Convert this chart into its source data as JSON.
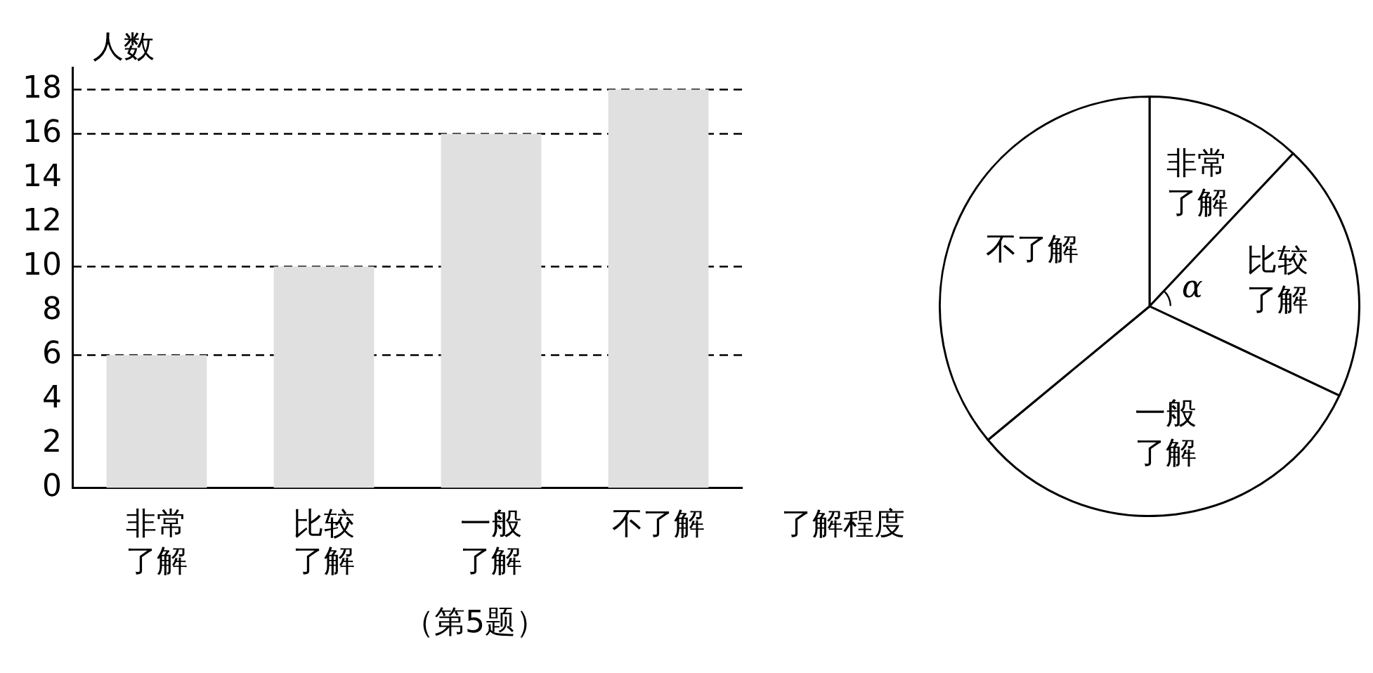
{
  "chart_data": [
    {
      "type": "bar",
      "ylabel": "人数",
      "xlabel": "了解程度",
      "categories": [
        "非常了解",
        "比较了解",
        "一般了解",
        "不了解"
      ],
      "values": [
        6,
        10,
        16,
        18
      ],
      "color": "#e0e0e0",
      "ylim": [
        0,
        19
      ],
      "yticks": [
        0,
        2,
        4,
        6,
        8,
        10,
        12,
        14,
        16,
        18
      ],
      "grid": false,
      "legend": false,
      "ref_lines": [
        {
          "axis": "y",
          "value": 6,
          "line_style": "dashed"
        },
        {
          "axis": "y",
          "value": 10,
          "line_style": "dashed"
        },
        {
          "axis": "y",
          "value": 16,
          "line_style": "dashed"
        },
        {
          "axis": "y",
          "value": 18,
          "line_style": "dashed"
        }
      ],
      "annotations": [
        "（第5题）"
      ]
    },
    {
      "type": "pie",
      "categories": [
        "非常了解",
        "比较了解",
        "一般了解",
        "不了解"
      ],
      "values": [
        12,
        20,
        32,
        36
      ],
      "colors": [
        "#ffffff",
        "#ffffff",
        "#ffffff",
        "#ffffff"
      ],
      "legend": false,
      "annotations": [
        {
          "text": "α",
          "x": "比较了解"
        }
      ]
    }
  ]
}
